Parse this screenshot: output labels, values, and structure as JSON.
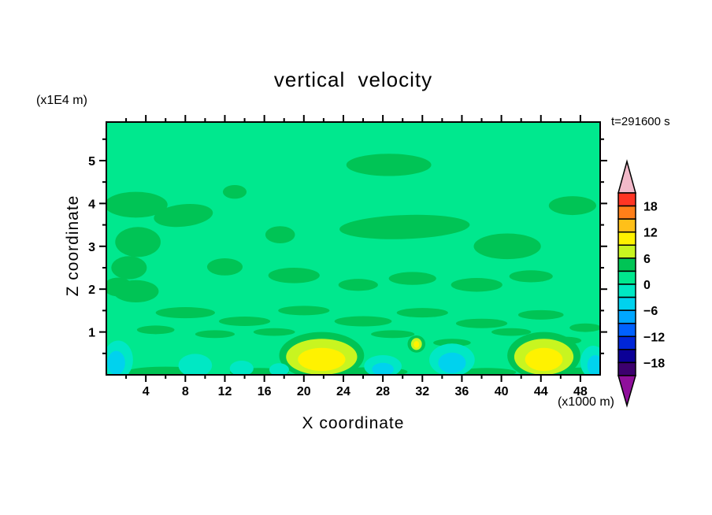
{
  "chart_data": {
    "type": "heatmap",
    "subtype": "filled-contour",
    "title": "vertical velocity",
    "time_label": "t=291600 s",
    "xlabel": "X coordinate",
    "ylabel": "Z coordinate",
    "x_unit_label": "(x1000 m)",
    "y_unit_label": "(x1E4 m)",
    "xlim": [
      0,
      50
    ],
    "ylim": [
      0,
      5.9
    ],
    "x_ticks_major": [
      4,
      8,
      12,
      16,
      20,
      24,
      28,
      32,
      36,
      40,
      44,
      48
    ],
    "x_ticks_minor": [
      2,
      6,
      10,
      14,
      18,
      22,
      26,
      30,
      34,
      38,
      42,
      46
    ],
    "y_ticks_major": [
      1,
      2,
      3,
      4,
      5
    ],
    "y_ticks_minor": [
      0.5,
      1.5,
      2.5,
      3.5,
      4.5,
      5.5
    ],
    "grid": false,
    "colorbar": {
      "position": "right",
      "level_max": 21,
      "level_step": 3,
      "levels": [
        -21,
        -18,
        -15,
        -12,
        -9,
        -6,
        -3,
        0,
        3,
        6,
        9,
        12,
        15,
        18,
        21
      ],
      "tick_labels": [
        {
          "value": 18,
          "label": "18"
        },
        {
          "value": 12,
          "label": "12"
        },
        {
          "value": 6,
          "label": "6"
        },
        {
          "value": 0,
          "label": "0"
        },
        {
          "value": -6,
          "label": "−6"
        },
        {
          "value": -12,
          "label": "−12"
        },
        {
          "value": -18,
          "label": "−18"
        }
      ],
      "colors_top_to_bottom": [
        "#ff3524",
        "#ff7f19",
        "#ffc019",
        "#fff200",
        "#c8f520",
        "#00c455",
        "#00e88e",
        "#00e8c4",
        "#00d2ee",
        "#00a6ff",
        "#0061ff",
        "#0026d8",
        "#0b0096",
        "#3c006e"
      ],
      "arrow_top_color": "#f2b9c9",
      "arrow_bottom_color": "#8f0f9b"
    },
    "band_colors": {
      "bg_0_3": "#00e88e",
      "p3_6": "#00c455",
      "p6_9": "#c8f520",
      "p9_12": "#fff200",
      "m3_0": "#00e8c4",
      "m6_m3": "#00d2ee"
    },
    "contour_blobs": {
      "band_3_6": [
        [
          28.6,
          4.9,
          4.3,
          0.26
        ],
        [
          13.0,
          4.27,
          1.2,
          0.16
        ],
        [
          47.2,
          3.95,
          2.4,
          0.22
        ],
        [
          3.0,
          3.97,
          3.2,
          0.3
        ],
        [
          7.8,
          3.72,
          3.0,
          0.26,
          -6
        ],
        [
          3.2,
          3.1,
          2.3,
          0.35
        ],
        [
          2.3,
          2.5,
          1.8,
          0.27
        ],
        [
          1.2,
          2.05,
          1.5,
          0.22
        ],
        [
          17.6,
          3.27,
          1.5,
          0.2
        ],
        [
          12.0,
          2.52,
          1.8,
          0.2
        ],
        [
          30.2,
          3.45,
          6.6,
          0.28,
          -2
        ],
        [
          40.6,
          3.0,
          3.4,
          0.3
        ],
        [
          19.0,
          2.32,
          2.6,
          0.18
        ],
        [
          25.5,
          2.1,
          2.0,
          0.14
        ],
        [
          31.0,
          2.25,
          2.4,
          0.15
        ],
        [
          37.5,
          2.1,
          2.6,
          0.16
        ],
        [
          43.0,
          2.3,
          2.2,
          0.14
        ],
        [
          3.0,
          1.95,
          2.3,
          0.26
        ],
        [
          8.0,
          1.45,
          3.0,
          0.13
        ],
        [
          14.0,
          1.25,
          2.6,
          0.11
        ],
        [
          20.0,
          1.5,
          2.6,
          0.11
        ],
        [
          26.0,
          1.25,
          2.9,
          0.12
        ],
        [
          32.0,
          1.45,
          2.6,
          0.11
        ],
        [
          38.0,
          1.2,
          2.6,
          0.11
        ],
        [
          44.0,
          1.4,
          2.3,
          0.11
        ],
        [
          48.5,
          1.1,
          1.6,
          0.1
        ],
        [
          5.0,
          1.05,
          1.9,
          0.1
        ],
        [
          11.0,
          0.95,
          2.0,
          0.09
        ],
        [
          17.0,
          1.0,
          2.1,
          0.09
        ],
        [
          23.0,
          0.8,
          1.9,
          0.09
        ],
        [
          29.0,
          0.95,
          2.2,
          0.09
        ],
        [
          35.0,
          0.75,
          1.9,
          0.09
        ],
        [
          41.0,
          1.0,
          2.0,
          0.09
        ],
        [
          46.5,
          0.8,
          1.6,
          0.09
        ],
        [
          21.8,
          0.45,
          4.3,
          0.55
        ],
        [
          44.3,
          0.45,
          3.7,
          0.55
        ],
        [
          31.4,
          0.72,
          0.9,
          0.2
        ],
        [
          6.0,
          0.07,
          4.0,
          0.12
        ],
        [
          15.5,
          0.06,
          3.0,
          0.1
        ],
        [
          27.0,
          0.07,
          3.5,
          0.11
        ],
        [
          38.5,
          0.06,
          3.0,
          0.1
        ],
        [
          48.0,
          0.07,
          2.2,
          0.1
        ]
      ],
      "band_m3_0": [
        [
          1.2,
          0.35,
          1.5,
          0.45
        ],
        [
          9.0,
          0.22,
          1.7,
          0.27
        ],
        [
          13.7,
          0.15,
          1.2,
          0.18
        ],
        [
          17.5,
          0.12,
          1.0,
          0.15
        ],
        [
          28.0,
          0.2,
          1.9,
          0.26
        ],
        [
          35.0,
          0.35,
          2.3,
          0.38
        ],
        [
          49.3,
          0.3,
          1.3,
          0.38
        ]
      ],
      "band_m6_m3": [
        [
          1.0,
          0.28,
          0.9,
          0.28
        ],
        [
          35.0,
          0.28,
          1.4,
          0.24
        ],
        [
          28.0,
          0.13,
          1.1,
          0.15
        ],
        [
          49.5,
          0.22,
          0.8,
          0.24
        ]
      ],
      "band_6_9": [
        [
          21.8,
          0.42,
          3.6,
          0.42
        ],
        [
          44.3,
          0.42,
          3.0,
          0.42
        ],
        [
          31.4,
          0.72,
          0.55,
          0.14
        ]
      ],
      "band_9_12": [
        [
          21.8,
          0.36,
          2.4,
          0.27
        ],
        [
          44.3,
          0.36,
          1.9,
          0.27
        ],
        [
          31.4,
          0.71,
          0.28,
          0.08
        ]
      ]
    },
    "field_summary": "Vertical velocity field dominated by the 0–3 band (bright green), with scattered weak 3–6 anomalies aloft and thin positive streaks below z≈1.6; shallow negative pockets (−6 to 0, cyan shades) along the surface; strong updraft cores reaching the 9–12 band (yellow) near x≈22 and x≈44 at z≈0.4, plus a small core near x≈31.4, z≈0.7."
  }
}
